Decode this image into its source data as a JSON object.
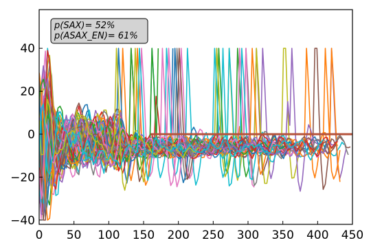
{
  "chart_data": {
    "type": "line",
    "title": "",
    "xlabel": "",
    "ylabel": "",
    "xlim": [
      0,
      450
    ],
    "ylim": [
      -42,
      58
    ],
    "x_ticks": [
      0,
      50,
      100,
      150,
      200,
      250,
      300,
      350,
      400,
      450
    ],
    "y_ticks": [
      -40,
      -20,
      0,
      20,
      40
    ],
    "x_tick_labels": [
      "0",
      "50",
      "100",
      "150",
      "200",
      "250",
      "300",
      "350",
      "400",
      "450"
    ],
    "y_tick_labels": [
      "−40",
      "−20",
      "0",
      "20",
      "40"
    ],
    "grid": false,
    "series_count": 80,
    "series_values_clip": [
      -40,
      40
    ],
    "typical_band": [
      -15,
      8
    ],
    "series_length_range": [
      150,
      455
    ],
    "reference_level_series": {
      "value": 0,
      "x_start": 160,
      "x_end": 450,
      "color": "#b5533c"
    },
    "annotations": [
      "p(SAX)= 52%",
      "p(ASAX_EN)= 61%"
    ],
    "annotation_box_position": "top-left",
    "color_cycle": [
      "#1f77b4",
      "#ff7f0e",
      "#2ca02c",
      "#d62728",
      "#9467bd",
      "#8c564b",
      "#e377c2",
      "#7f7f7f",
      "#bcbd22",
      "#17becf"
    ]
  }
}
